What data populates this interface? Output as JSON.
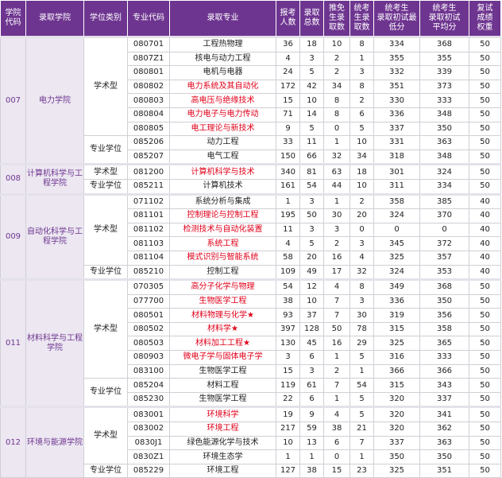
{
  "header": [
    "学院\n代码",
    "录取学院",
    "学位类别",
    "专业代码",
    "录取专业",
    "报考\n人数",
    "录取\n总数",
    "推免\n生录\n取数",
    "统考\n生录\n取数",
    "统考生\n录取初试最\n低分",
    "统考生\n录取初试\n平均分",
    "复试\n成绩\n权重"
  ],
  "colleges": [
    {
      "code": "007",
      "name": "电力学院",
      "groups": [
        {
          "type": "学术型",
          "rows": [
            {
              "code": "080701",
              "major": "工程热物理",
              "color": "#222222",
              "values": [
                36,
                18,
                10,
                8,
                334,
                368,
                50
              ]
            },
            {
              "code": "0807Z1",
              "major": "核电与动力工程",
              "color": "#222222",
              "values": [
                4,
                3,
                2,
                1,
                355,
                355,
                50
              ]
            },
            {
              "code": "080801",
              "major": "电机与电器",
              "color": "#222222",
              "values": [
                24,
                5,
                2,
                3,
                332,
                339,
                50
              ]
            },
            {
              "code": "080802",
              "major": "电力系统及其自动化",
              "color": "#e0001a",
              "values": [
                172,
                42,
                34,
                8,
                351,
                373,
                50
              ]
            },
            {
              "code": "080803",
              "major": "高电压与绝缘技术",
              "color": "#e0001a",
              "values": [
                15,
                10,
                8,
                2,
                330,
                333,
                50
              ]
            },
            {
              "code": "080804",
              "major": "电力电子与电力传动",
              "color": "#e0001a",
              "values": [
                71,
                14,
                8,
                6,
                336,
                348,
                50
              ]
            },
            {
              "code": "080805",
              "major": "电工理论与新技术",
              "color": "#e0001a",
              "values": [
                9,
                5,
                0,
                5,
                337,
                350,
                50
              ]
            }
          ]
        },
        {
          "type": "专业学位",
          "rows": [
            {
              "code": "085206",
              "major": "动力工程",
              "color": "#222222",
              "values": [
                33,
                11,
                1,
                10,
                331,
                363,
                50
              ]
            },
            {
              "code": "085207",
              "major": "电气工程",
              "color": "#222222",
              "values": [
                150,
                66,
                32,
                34,
                318,
                348,
                50
              ]
            }
          ]
        }
      ]
    },
    {
      "code": "008",
      "name": "计算机科学与工程学院",
      "groups": [
        {
          "type": "学术型",
          "rows": [
            {
              "code": "081200",
              "major": "计算机科学与技术",
              "color": "#e0001a",
              "values": [
                340,
                81,
                63,
                18,
                301,
                324,
                50
              ]
            }
          ]
        },
        {
          "type": "专业学位",
          "rows": [
            {
              "code": "085211",
              "major": "计算机技术",
              "color": "#222222",
              "values": [
                161,
                54,
                44,
                10,
                311,
                334,
                50
              ]
            }
          ]
        }
      ]
    },
    {
      "code": "009",
      "name": "自动化科学与工程学院",
      "groups": [
        {
          "type": "学术型",
          "rows": [
            {
              "code": "071102",
              "major": "系统分析与集成",
              "color": "#222222",
              "values": [
                1,
                3,
                1,
                2,
                358,
                385,
                40
              ]
            },
            {
              "code": "081101",
              "major": "控制理论与控制工程",
              "color": "#e0001a",
              "values": [
                195,
                50,
                30,
                20,
                324,
                370,
                40
              ]
            },
            {
              "code": "081102",
              "major": "检测技术与自动化装置",
              "color": "#e0001a",
              "values": [
                11,
                3,
                3,
                0,
                0,
                0,
                40
              ]
            },
            {
              "code": "081103",
              "major": "系统工程",
              "color": "#e0001a",
              "values": [
                4,
                5,
                2,
                3,
                345,
                372,
                40
              ]
            },
            {
              "code": "081104",
              "major": "模式识别与智能系统",
              "color": "#e0001a",
              "values": [
                58,
                20,
                16,
                4,
                325,
                357,
                40
              ]
            }
          ]
        },
        {
          "type": "专业学位",
          "rows": [
            {
              "code": "085210",
              "major": "控制工程",
              "color": "#222222",
              "values": [
                109,
                49,
                17,
                32,
                324,
                353,
                40
              ]
            }
          ]
        }
      ]
    },
    {
      "code": "011",
      "name": "材料科学与工程学院",
      "groups": [
        {
          "type": "学术型",
          "rows": [
            {
              "code": "070305",
              "major": "高分子化学与物理",
              "color": "#e0001a",
              "values": [
                54,
                12,
                4,
                8,
                349,
                368,
                50
              ]
            },
            {
              "code": "077700",
              "major": "生物医学工程",
              "color": "#e0001a",
              "values": [
                38,
                10,
                7,
                3,
                336,
                350,
                50
              ]
            },
            {
              "code": "080501",
              "major": "材料物理与化学★",
              "color": "#e0001a",
              "values": [
                93,
                37,
                7,
                30,
                319,
                356,
                50
              ]
            },
            {
              "code": "080502",
              "major": "材料学★",
              "color": "#e0001a",
              "values": [
                397,
                128,
                50,
                78,
                315,
                358,
                50
              ]
            },
            {
              "code": "080503",
              "major": "材料加工工程★",
              "color": "#e0001a",
              "values": [
                130,
                45,
                16,
                29,
                325,
                365,
                50
              ]
            },
            {
              "code": "080903",
              "major": "微电子学与固体电子学",
              "color": "#e0001a",
              "values": [
                3,
                6,
                1,
                5,
                316,
                333,
                50
              ]
            },
            {
              "code": "083100",
              "major": "生物医学工程",
              "color": "#222222",
              "values": [
                15,
                3,
                2,
                1,
                366,
                366,
                50
              ]
            }
          ]
        },
        {
          "type": "专业学位",
          "rows": [
            {
              "code": "085204",
              "major": "材料工程",
              "color": "#222222",
              "values": [
                119,
                61,
                7,
                54,
                315,
                343,
                50
              ]
            },
            {
              "code": "085230",
              "major": "生物医学工程",
              "color": "#222222",
              "values": [
                22,
                6,
                1,
                5,
                320,
                337,
                50
              ]
            }
          ]
        }
      ]
    },
    {
      "code": "012",
      "name": "环境与能源学院",
      "groups": [
        {
          "type": "学术型",
          "rows": [
            {
              "code": "083001",
              "major": "环境科学",
              "color": "#e0001a",
              "values": [
                19,
                9,
                4,
                5,
                320,
                341,
                50
              ]
            },
            {
              "code": "083002",
              "major": "环境工程",
              "color": "#e0001a",
              "values": [
                217,
                59,
                38,
                21,
                320,
                362,
                50
              ]
            },
            {
              "code": "0830J1",
              "major": "绿色能源化学与技术",
              "color": "#222222",
              "values": [
                10,
                13,
                6,
                7,
                337,
                363,
                50
              ]
            },
            {
              "code": "0830Z1",
              "major": "环境生态学",
              "color": "#222222",
              "values": [
                1,
                1,
                0,
                1,
                350,
                350,
                50
              ]
            }
          ]
        },
        {
          "type": "专业学位",
          "rows": [
            {
              "code": "085229",
              "major": "环境工程",
              "color": "#222222",
              "values": [
                127,
                38,
                15,
                23,
                325,
                351,
                50
              ]
            }
          ]
        }
      ]
    }
  ]
}
